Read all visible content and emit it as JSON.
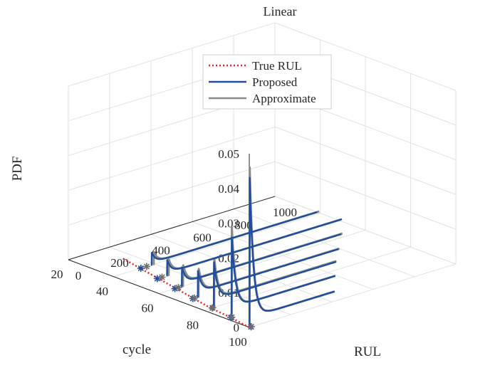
{
  "chart_data": {
    "type": "line",
    "title": "Linear",
    "xlabel": "RUL",
    "ylabel": "cycle",
    "zlabel": "PDF",
    "x_ticks": [
      0,
      200,
      400,
      600,
      800,
      1000
    ],
    "y_ticks": [
      20,
      40,
      60,
      80,
      100
    ],
    "z_ticks": [
      0,
      0.01,
      0.02,
      0.03,
      0.04,
      0.05
    ],
    "xlim": [
      0,
      1000
    ],
    "ylim": [
      20,
      100
    ],
    "zlim": [
      0,
      0.05
    ],
    "grid": true,
    "legend_position": "top-center",
    "series": [
      {
        "name": "True RUL",
        "color": "#e8262a",
        "style": "dotted",
        "points": [
          [
            0,
            100
          ],
          [
            20,
            90
          ],
          [
            34,
            80
          ],
          [
            58,
            70
          ],
          [
            82,
            60
          ],
          [
            106,
            50
          ],
          [
            130,
            40
          ],
          [
            154,
            30
          ]
        ]
      },
      {
        "name": "Proposed",
        "color": "#1f4e9e",
        "style": "solid",
        "curves": [
          {
            "cycle": 100,
            "peak_rul": 2,
            "peak_pdf": 0.043
          },
          {
            "cycle": 90,
            "peak_rul": 25,
            "peak_pdf": 0.023
          },
          {
            "cycle": 80,
            "peak_rul": 48,
            "peak_pdf": 0.013
          },
          {
            "cycle": 70,
            "peak_rul": 80,
            "peak_pdf": 0.0075
          },
          {
            "cycle": 60,
            "peak_rul": 112,
            "peak_pdf": 0.0055
          },
          {
            "cycle": 50,
            "peak_rul": 150,
            "peak_pdf": 0.0045
          },
          {
            "cycle": 40,
            "peak_rul": 185,
            "peak_pdf": 0.0035
          }
        ]
      },
      {
        "name": "Approximate",
        "color": "#8a8a8a",
        "style": "solid",
        "curves": [
          {
            "cycle": 100,
            "peak_rul": 2,
            "peak_pdf": 0.046
          },
          {
            "cycle": 90,
            "peak_rul": 25,
            "peak_pdf": 0.026
          },
          {
            "cycle": 80,
            "peak_rul": 50,
            "peak_pdf": 0.014
          },
          {
            "cycle": 70,
            "peak_rul": 84,
            "peak_pdf": 0.008
          },
          {
            "cycle": 60,
            "peak_rul": 118,
            "peak_pdf": 0.006
          },
          {
            "cycle": 50,
            "peak_rul": 158,
            "peak_pdf": 0.0045
          },
          {
            "cycle": 40,
            "peak_rul": 195,
            "peak_pdf": 0.0035
          }
        ]
      }
    ],
    "markers": [
      {
        "series": "Proposed",
        "symbol": "*",
        "color": "#1f4e9e",
        "points": [
          [
            8,
            100
          ],
          [
            20,
            90
          ],
          [
            40,
            80
          ],
          [
            55,
            70
          ],
          [
            78,
            60
          ],
          [
            102,
            50
          ],
          [
            132,
            40
          ]
        ]
      },
      {
        "series": "Approximate",
        "symbol": "*",
        "color": "#6e6e6e",
        "points": [
          [
            10,
            100
          ],
          [
            25,
            90
          ],
          [
            42,
            80
          ],
          [
            63,
            70
          ],
          [
            95,
            60
          ],
          [
            125,
            50
          ],
          [
            160,
            40
          ]
        ]
      }
    ]
  }
}
